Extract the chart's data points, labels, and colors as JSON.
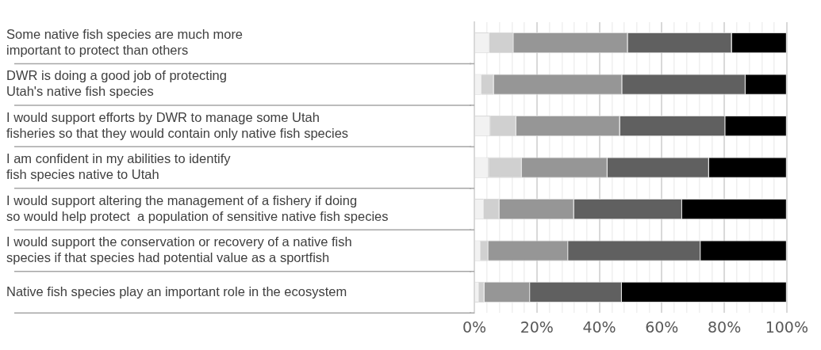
{
  "chart_data": {
    "type": "bar",
    "orientation": "horizontal",
    "stacked": true,
    "categories": [
      "Some native fish species are much more\nimportant to protect than others",
      "DWR is doing a good job of protecting\nUtah's native fish species",
      "I would support efforts by DWR to manage some Utah\nfisheries so that they would contain only native fish species",
      "I am confident in my abilities to identify\nfish species native to Utah",
      "I would support altering the management of a fishery if doing\nso would help protect  a population of sensitive native fish species",
      "I would support the conservation or recovery of a native fish\nspecies if that species had potential value as a sportfish",
      "Native fish species play an important role in the ecosystem"
    ],
    "series": [
      {
        "color": "#f2f2f2",
        "values": [
          4.7,
          2.2,
          5.1,
          4.6,
          3.0,
          2.0,
          1.5
        ]
      },
      {
        "color": "#d0d0d0",
        "values": [
          7.8,
          4.0,
          8.3,
          10.6,
          5.0,
          2.4,
          1.7
        ]
      },
      {
        "color": "#969696",
        "values": [
          36.6,
          41.1,
          33.2,
          27.4,
          23.9,
          25.6,
          14.6
        ]
      },
      {
        "color": "#606060",
        "values": [
          33.3,
          39.5,
          33.7,
          32.5,
          34.6,
          42.4,
          29.4
        ]
      },
      {
        "color": "#000000",
        "values": [
          17.6,
          13.2,
          19.7,
          24.9,
          33.5,
          27.6,
          52.8
        ]
      }
    ],
    "xlim": [
      0,
      100
    ],
    "xticks": [
      {
        "value": 0,
        "label": "0%"
      },
      {
        "value": 4,
        "label": null
      },
      {
        "value": 8,
        "label": null
      },
      {
        "value": 12,
        "label": null
      },
      {
        "value": 16,
        "label": null
      },
      {
        "value": 20,
        "label": "20%"
      },
      {
        "value": 24,
        "label": null
      },
      {
        "value": 28,
        "label": null
      },
      {
        "value": 32,
        "label": null
      },
      {
        "value": 36,
        "label": null
      },
      {
        "value": 40,
        "label": "40%"
      },
      {
        "value": 44,
        "label": null
      },
      {
        "value": 48,
        "label": null
      },
      {
        "value": 52,
        "label": null
      },
      {
        "value": 56,
        "label": null
      },
      {
        "value": 60,
        "label": "60%"
      },
      {
        "value": 64,
        "label": null
      },
      {
        "value": 68,
        "label": null
      },
      {
        "value": 72,
        "label": null
      },
      {
        "value": 76,
        "label": null
      },
      {
        "value": 80,
        "label": "80%"
      },
      {
        "value": 84,
        "label": null
      },
      {
        "value": 88,
        "label": null
      },
      {
        "value": 92,
        "label": null
      },
      {
        "value": 96,
        "label": null
      },
      {
        "value": 100,
        "label": "100%"
      }
    ],
    "grid": "x",
    "legend": false
  }
}
